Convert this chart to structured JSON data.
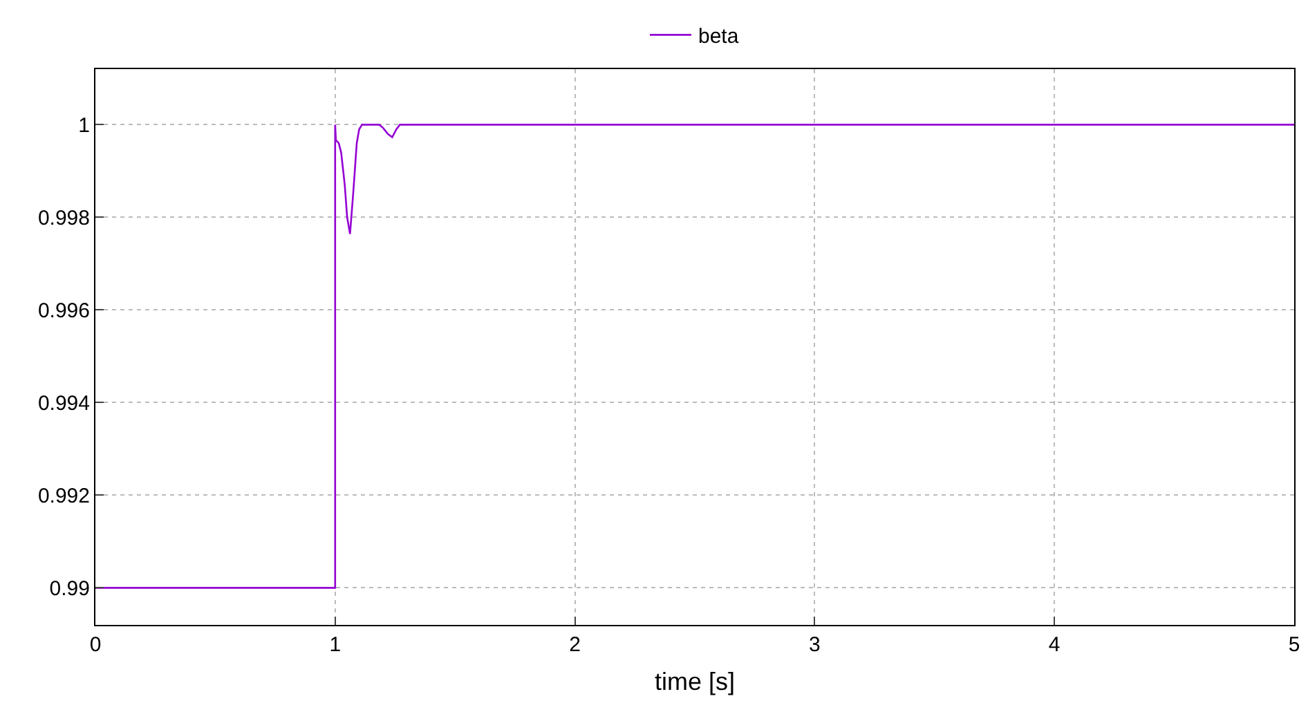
{
  "chart_data": {
    "type": "line",
    "xlabel": "time [s]",
    "legend": "top",
    "grid": true,
    "xlim": [
      0,
      5
    ],
    "xticks": [
      0,
      1,
      2,
      3,
      4,
      5
    ],
    "ylim": [
      0.9892,
      1.0012
    ],
    "yticks": [
      {
        "value": 0.99,
        "label": "0.99"
      },
      {
        "value": 0.992,
        "label": "0.992"
      },
      {
        "value": 0.994,
        "label": "0.994"
      },
      {
        "value": 0.996,
        "label": "0.996"
      },
      {
        "value": 0.998,
        "label": "0.998"
      },
      {
        "value": 1,
        "label": "1"
      }
    ],
    "series": [
      {
        "name": "beta",
        "color": "#9400d3",
        "x": [
          0,
          1,
          1,
          1.003,
          1.015,
          1.025,
          1.04,
          1.05,
          1.062,
          1.075,
          1.09,
          1.1,
          1.112,
          1.184,
          1.2,
          1.22,
          1.238,
          1.255,
          1.27,
          5
        ],
        "values": [
          0.99,
          0.99,
          1,
          0.99967,
          0.9996,
          0.9994,
          0.9987,
          0.998,
          0.99764,
          0.9985,
          0.9996,
          0.9999,
          1,
          1,
          0.99993,
          0.9998,
          0.99973,
          0.9999,
          1,
          1
        ]
      }
    ]
  }
}
